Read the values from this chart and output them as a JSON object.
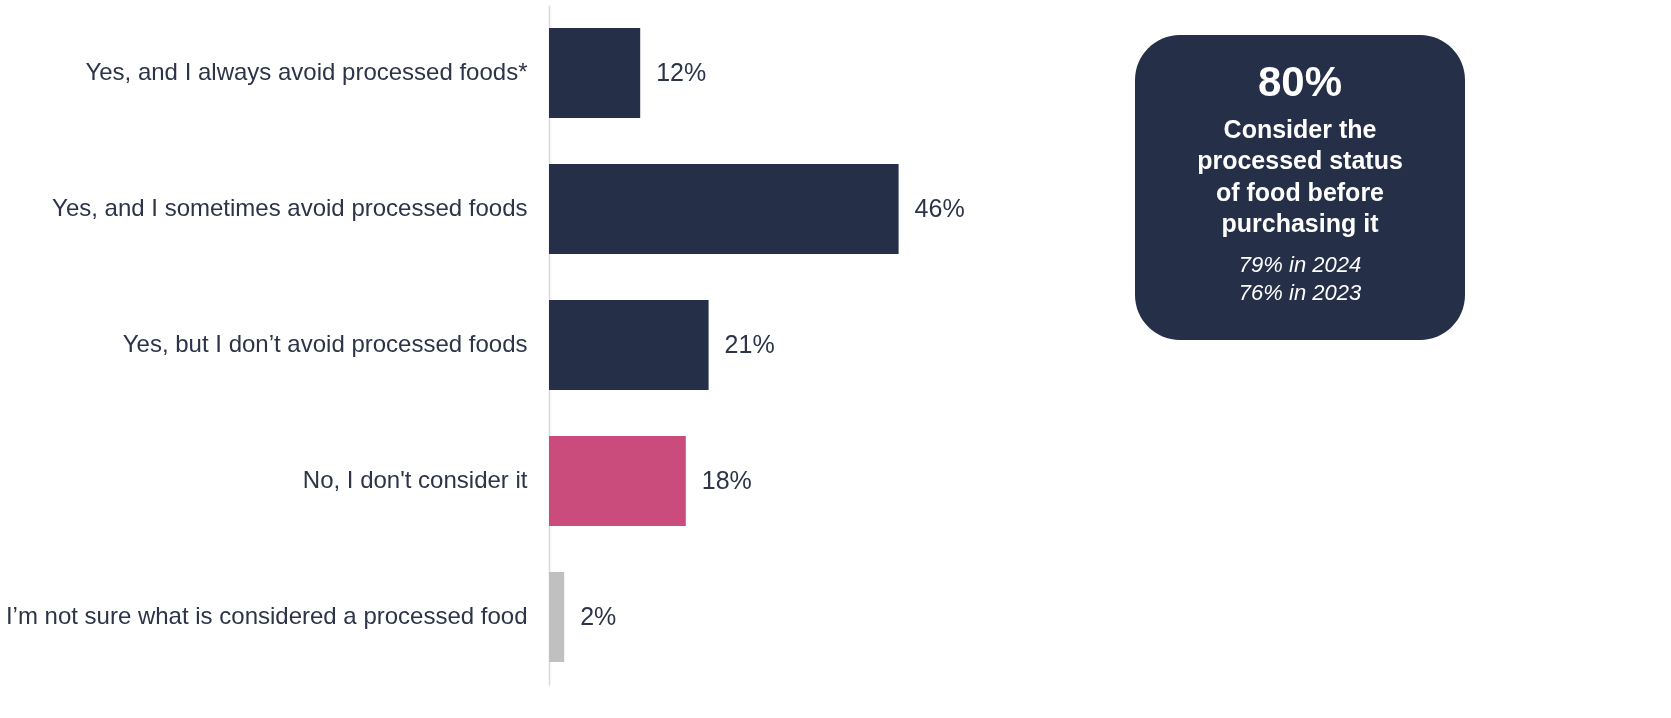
{
  "chart_data": [
    {
      "type": "bar",
      "orientation": "horizontal",
      "categories": [
        "Yes, and I always avoid processed foods*",
        "Yes, and I sometimes avoid processed foods",
        "Yes, but I don’t avoid processed foods",
        "No, I don't consider it",
        "I’m not sure what is considered a processed food"
      ],
      "values": [
        12,
        46,
        21,
        18,
        2
      ],
      "colors": [
        "#252f48",
        "#252f48",
        "#252f48",
        "#c94c7c",
        "#c0c0c0"
      ],
      "value_labels": [
        "12%",
        "46%",
        "21%",
        "18%",
        "2%"
      ],
      "tick_labels": "y"
    },
    {
      "type": "other",
      "title": "80%",
      "subtitle": "Consider the processed status of food before purchasing it",
      "annotations": [
        "79% in 2024",
        "76% in 2023"
      ]
    }
  ]
}
